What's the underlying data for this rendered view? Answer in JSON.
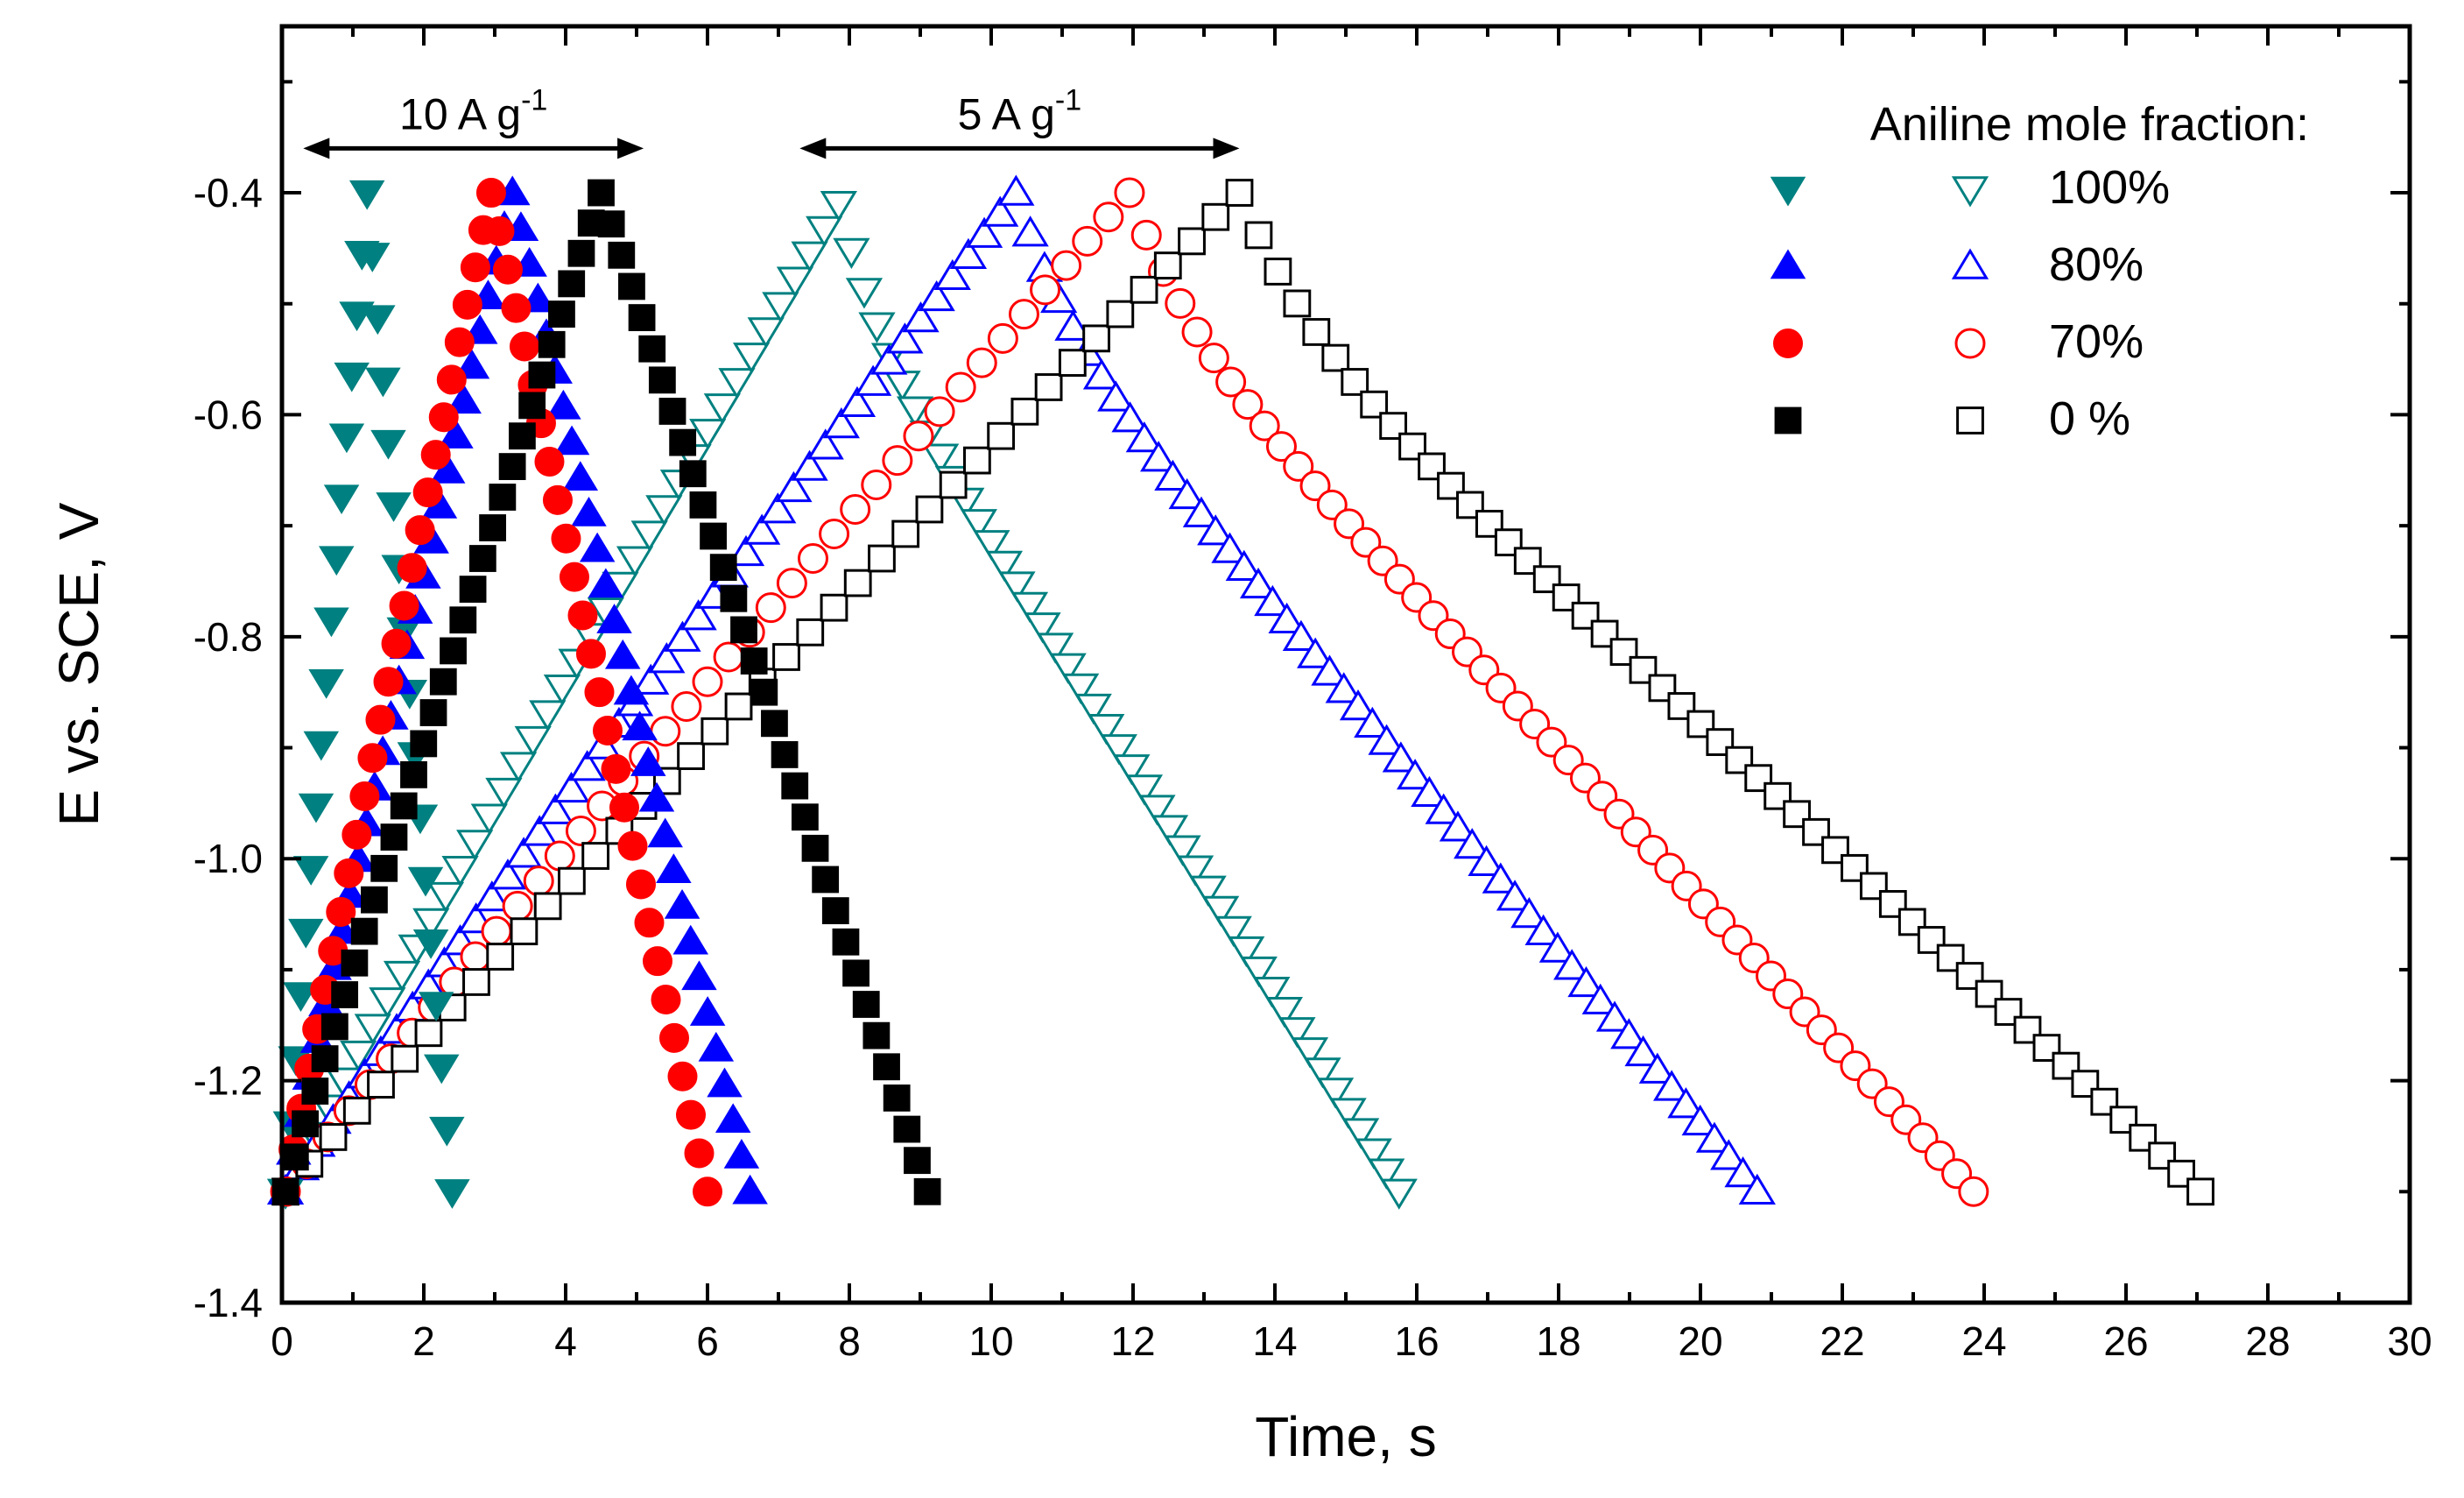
{
  "chart_data": {
    "type": "scatter",
    "title": "",
    "xlabel": "Time, s",
    "ylabel": "E vs. SCE, V",
    "xlim": [
      0,
      30
    ],
    "ylim": [
      -1.4,
      -0.25
    ],
    "xticks": [
      "0",
      "2",
      "4",
      "6",
      "8",
      "10",
      "12",
      "14",
      "16",
      "18",
      "20",
      "22",
      "24",
      "26",
      "28",
      "30"
    ],
    "yticks": [
      "-1.4",
      "-1.2",
      "-1.0",
      "-0.8",
      "-0.6",
      "-0.4"
    ],
    "xtick_values": [
      0,
      2,
      4,
      6,
      8,
      10,
      12,
      14,
      16,
      18,
      20,
      22,
      24,
      26,
      28,
      30
    ],
    "ytick_values": [
      -1.4,
      -1.2,
      -1.0,
      -0.8,
      -0.6,
      -0.4
    ],
    "grid": false,
    "legend": {
      "title": "Aniline mole fraction:",
      "location": "top-right",
      "entries": [
        "100%",
        "80%",
        "70%",
        "0 %"
      ]
    },
    "annotations": [
      {
        "main": "10 A g",
        "sup": "-1",
        "x_from": 0.3,
        "x_to": 5.1,
        "y": -0.36
      },
      {
        "main": "5 A g",
        "sup": "-1",
        "x_from": 7.3,
        "x_to": 13.5,
        "y": -0.36
      }
    ],
    "series": [
      {
        "name": "100%",
        "current": "10 A g-1",
        "marker": "triangle-down",
        "filled": true,
        "color": "#008080",
        "charge_start": [
          0.05,
          -1.3
        ],
        "peak": [
          1.2,
          -0.4
        ],
        "end": [
          2.4,
          -1.3
        ],
        "discharge_shape": "linear",
        "n_charge": 16,
        "n_discharge": 16
      },
      {
        "name": "80%",
        "current": "10 A g-1",
        "marker": "triangle-up",
        "filled": true,
        "color": "#0000ff",
        "charge_start": [
          0.05,
          -1.3
        ],
        "peak": [
          3.25,
          -0.4
        ],
        "end": [
          6.6,
          -1.3
        ],
        "discharge_shape": "linear",
        "n_charge": 28,
        "n_discharge": 28
      },
      {
        "name": "70%",
        "current": "10 A g-1",
        "marker": "circle",
        "filled": true,
        "color": "#ff0000",
        "charge_start": [
          0.05,
          -1.3
        ],
        "peak": [
          2.95,
          -0.4
        ],
        "end": [
          6.0,
          -1.3
        ],
        "discharge_shape": "linear",
        "n_charge": 26,
        "n_discharge": 26
      },
      {
        "name": "0 %",
        "current": "10 A g-1",
        "marker": "square",
        "filled": true,
        "color": "#000000",
        "charge_start": [
          0.05,
          -1.3
        ],
        "peak": [
          4.5,
          -0.4
        ],
        "end": [
          9.1,
          -1.3
        ],
        "discharge_shape": "linear",
        "n_charge": 32,
        "n_discharge": 32
      },
      {
        "name": "100%",
        "current": "5 A g-1",
        "marker": "triangle-down",
        "filled": false,
        "color": "#008080",
        "charge_start": [
          0.05,
          -1.3
        ],
        "peak": [
          7.85,
          -0.41
        ],
        "end": [
          15.75,
          -1.3
        ],
        "discharge_shape": "concave",
        "n_charge": 38,
        "n_discharge": 44
      },
      {
        "name": "80%",
        "current": "5 A g-1",
        "marker": "triangle-up",
        "filled": false,
        "color": "#0000ff",
        "charge_start": [
          0.05,
          -1.3
        ],
        "peak": [
          10.35,
          -0.4
        ],
        "end": [
          20.8,
          -1.3
        ],
        "discharge_shape": "concave",
        "n_charge": 46,
        "n_discharge": 52
      },
      {
        "name": "70%",
        "current": "5 A g-1",
        "marker": "circle",
        "filled": false,
        "color": "#ff0000",
        "charge_start": [
          0.05,
          -1.3
        ],
        "peak": [
          11.95,
          -0.4
        ],
        "end": [
          23.85,
          -1.3
        ],
        "discharge_shape": "concave",
        "n_charge": 40,
        "n_discharge": 50
      },
      {
        "name": "0 %",
        "current": "5 A g-1",
        "marker": "square",
        "filled": false,
        "color": "#000000",
        "charge_start": [
          0.05,
          -1.3
        ],
        "peak": [
          13.5,
          -0.4
        ],
        "end": [
          27.05,
          -1.3
        ],
        "discharge_shape": "concave",
        "n_charge": 40,
        "n_discharge": 50
      }
    ]
  }
}
